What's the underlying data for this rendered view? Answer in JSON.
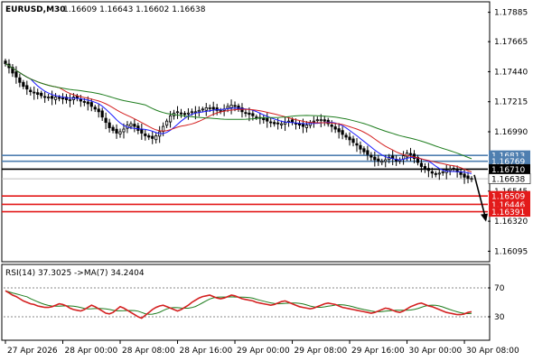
{
  "chart_data": [
    {
      "type": "candlestick",
      "symbol_header": "EURUSD,M30",
      "ohlc_header": "1.16609 1.16643 1.16602 1.16638",
      "ylim": [
        1.1603,
        1.1795
      ],
      "price_ticks": [
        "1.17885",
        "1.17665",
        "1.17440",
        "1.17215",
        "1.16990",
        "1.16545",
        "1.16320",
        "1.16095"
      ],
      "price_tick_values": [
        1.17885,
        1.17665,
        1.1744,
        1.17215,
        1.1699,
        1.16545,
        1.1632,
        1.16095
      ],
      "levels": [
        {
          "label": "1.16813",
          "value": 1.16813,
          "color": "#4f7fb0"
        },
        {
          "label": "1.16769",
          "value": 1.16769,
          "color": "#4f7fb0"
        },
        {
          "label": "1.16710",
          "value": 1.1671,
          "color": "#000000"
        },
        {
          "label": "1.16638",
          "value": 1.16638,
          "color": "#000000"
        },
        {
          "label": "1.16509",
          "value": 1.16509,
          "color": "#e31a1a"
        },
        {
          "label": "1.16446",
          "value": 1.16446,
          "color": "#e31a1a"
        },
        {
          "label": "1.16391",
          "value": 1.16391,
          "color": "#e31a1a"
        }
      ],
      "time_labels": [
        "27 Apr 2026",
        "28 Apr 00:00",
        "28 Apr 08:00",
        "28 Apr 16:00",
        "29 Apr 00:00",
        "29 Apr 08:00",
        "29 Apr 16:00",
        "30 Apr 00:00",
        "30 Apr 08:00"
      ],
      "time_label_positions": [
        0,
        16,
        32,
        48,
        64,
        80,
        96,
        112,
        128
      ],
      "bar_count": 131,
      "closes": [
        1.175,
        1.1747,
        1.1743,
        1.174,
        1.1736,
        1.1733,
        1.1731,
        1.1729,
        1.1728,
        1.1727,
        1.1726,
        1.1725,
        1.1725,
        1.1724,
        1.1725,
        1.1724,
        1.1724,
        1.1723,
        1.1723,
        1.1725,
        1.1724,
        1.1722,
        1.1721,
        1.172,
        1.1718,
        1.1716,
        1.1714,
        1.171,
        1.1706,
        1.1702,
        1.17,
        1.1698,
        1.1699,
        1.1701,
        1.1704,
        1.1705,
        1.1703,
        1.17,
        1.1698,
        1.1696,
        1.1695,
        1.1694,
        1.1696,
        1.1699,
        1.1703,
        1.1707,
        1.1711,
        1.1713,
        1.1714,
        1.1713,
        1.1712,
        1.1713,
        1.1714,
        1.1714,
        1.1715,
        1.1716,
        1.1717,
        1.1717,
        1.1716,
        1.1715,
        1.1715,
        1.1716,
        1.1718,
        1.1719,
        1.1718,
        1.1716,
        1.1714,
        1.1713,
        1.1712,
        1.1711,
        1.171,
        1.1709,
        1.1708,
        1.1707,
        1.1706,
        1.1705,
        1.1705,
        1.1705,
        1.1706,
        1.1707,
        1.1706,
        1.1705,
        1.1704,
        1.1703,
        1.1704,
        1.1706,
        1.1707,
        1.1708,
        1.1708,
        1.1707,
        1.1705,
        1.1703,
        1.1701,
        1.1699,
        1.1697,
        1.1695,
        1.1693,
        1.1691,
        1.1689,
        1.1686,
        1.1684,
        1.1682,
        1.168,
        1.1678,
        1.1677,
        1.1677,
        1.1678,
        1.168,
        1.1679,
        1.1677,
        1.1678,
        1.1681,
        1.1683,
        1.1682,
        1.1679,
        1.1676,
        1.1673,
        1.1671,
        1.167,
        1.1668,
        1.1667,
        1.1668,
        1.1669,
        1.167,
        1.1671,
        1.1671,
        1.1669,
        1.1667,
        1.1665,
        1.1664,
        1.1664
      ],
      "projection_arrow_to": 1.1633
    },
    {
      "type": "line",
      "indicator_header": "RSI(14) 37.3025   ->MA(7) 34.2404",
      "ylim": [
        0,
        100
      ],
      "levels": [
        "70",
        "30"
      ],
      "level_values": [
        70,
        30
      ],
      "rsi_series": [
        66,
        63,
        60,
        58,
        55,
        52,
        50,
        48,
        47,
        45,
        44,
        43,
        43,
        44,
        46,
        48,
        47,
        45,
        42,
        40,
        39,
        38,
        40,
        43,
        46,
        44,
        41,
        38,
        35,
        34,
        36,
        40,
        44,
        42,
        39,
        36,
        33,
        30,
        28,
        32,
        36,
        40,
        43,
        45,
        46,
        44,
        42,
        40,
        38,
        40,
        43,
        46,
        50,
        53,
        56,
        58,
        59,
        60,
        58,
        56,
        55,
        56,
        58,
        60,
        59,
        57,
        55,
        54,
        53,
        52,
        50,
        49,
        48,
        47,
        46,
        47,
        49,
        51,
        52,
        50,
        48,
        46,
        44,
        43,
        42,
        41,
        42,
        44,
        46,
        48,
        49,
        48,
        47,
        45,
        43,
        42,
        41,
        40,
        39,
        38,
        37,
        36,
        35,
        36,
        38,
        40,
        42,
        41,
        39,
        37,
        36,
        38,
        41,
        44,
        46,
        48,
        49,
        47,
        45,
        44,
        42,
        40,
        38,
        36,
        35,
        34,
        33,
        33,
        34,
        36,
        37
      ]
    }
  ]
}
